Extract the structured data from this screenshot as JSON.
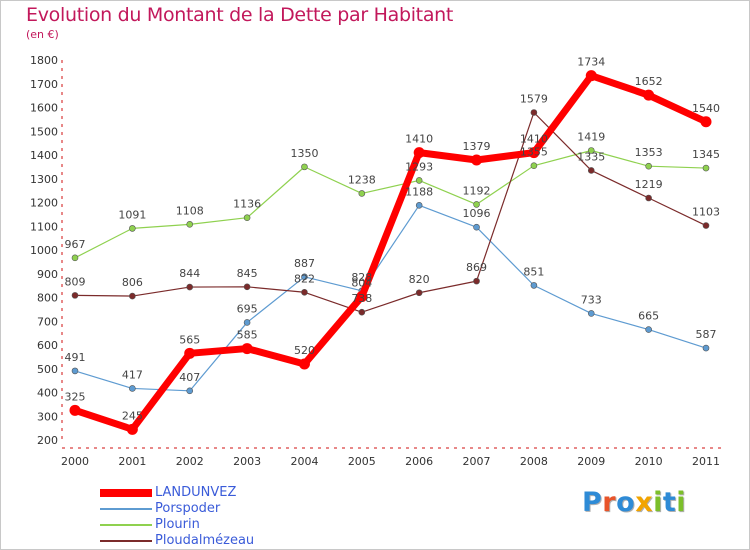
{
  "header": {
    "title": "Evolution du Montant de la Dette par Habitant",
    "subtitle": "(en €)"
  },
  "logo": {
    "letters": [
      "P",
      "r",
      "o",
      "x",
      "i",
      "t",
      "i"
    ],
    "colors": [
      "#2e8bd6",
      "#e8542a",
      "#2e8bd6",
      "#f2a400",
      "#7cbf2a",
      "#2e8bd6",
      "#7cbf2a"
    ]
  },
  "chart_data": {
    "type": "line",
    "title": "Evolution du Montant de la Dette par Habitant",
    "subtitle": "(en €)",
    "xlabel": "",
    "ylabel": "",
    "x": [
      "2000",
      "2001",
      "2002",
      "2003",
      "2004",
      "2005",
      "2006",
      "2007",
      "2008",
      "2009",
      "2010",
      "2011"
    ],
    "ylim": [
      200,
      1800
    ],
    "yticks": [
      200,
      300,
      400,
      500,
      600,
      700,
      800,
      900,
      1000,
      1100,
      1200,
      1300,
      1400,
      1500,
      1600,
      1700,
      1800
    ],
    "grid": false,
    "legend": "bottom-left",
    "series": [
      {
        "name": "LANDUNVEZ",
        "color": "#ff0000",
        "values": [
          325,
          245,
          565,
          585,
          520,
          804,
          1410,
          1379,
          1410,
          1734,
          1652,
          1540
        ]
      },
      {
        "name": "Porspoder",
        "color": "#5e9bd1",
        "values": [
          491,
          417,
          407,
          695,
          887,
          828,
          1188,
          1096,
          851,
          733,
          665,
          587
        ]
      },
      {
        "name": "Plourin",
        "color": "#8fd14f",
        "values": [
          967,
          1091,
          1108,
          1136,
          1350,
          1238,
          1293,
          1192,
          1355,
          1419,
          1353,
          1345
        ]
      },
      {
        "name": "Ploudalmézeau",
        "color": "#7b2b2b",
        "values": [
          809,
          806,
          844,
          845,
          822,
          738,
          820,
          869,
          1579,
          1335,
          1219,
          1103
        ]
      }
    ]
  }
}
